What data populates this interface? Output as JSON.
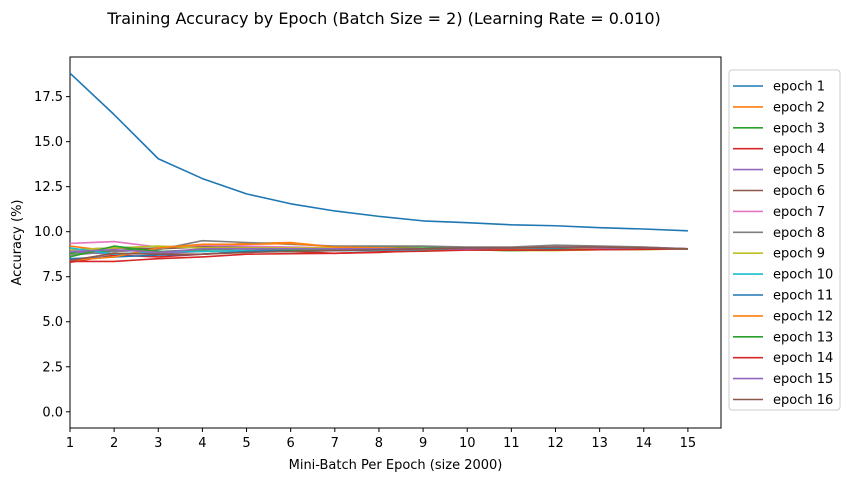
{
  "chart_data": {
    "type": "line",
    "title": "Training Accuracy by Epoch (Batch Size = 2) (Learning Rate = 0.010)",
    "xlabel": "Mini-Batch Per Epoch (size 2000)",
    "ylabel": "Accuracy (%)",
    "xlim": [
      1,
      15.75
    ],
    "ylim": [
      -0.9,
      19.7
    ],
    "x": [
      1,
      2,
      3,
      4,
      5,
      6,
      7,
      8,
      9,
      10,
      11,
      12,
      13,
      14,
      15
    ],
    "xticks": [
      "1",
      "2",
      "3",
      "4",
      "5",
      "6",
      "7",
      "8",
      "9",
      "10",
      "11",
      "12",
      "13",
      "14",
      "15"
    ],
    "yticks": [
      "0.0",
      "2.5",
      "5.0",
      "7.5",
      "10.0",
      "12.5",
      "15.0",
      "17.5"
    ],
    "yticks_values": [
      0,
      2.5,
      5,
      7.5,
      10,
      12.5,
      15,
      17.5
    ],
    "grid": false,
    "legend_position": "outside-right",
    "series": [
      {
        "name": "epoch 1",
        "color": "#1f77b4",
        "values": [
          18.8,
          16.5,
          14.05,
          12.95,
          12.1,
          11.55,
          11.15,
          10.85,
          10.6,
          10.5,
          10.38,
          10.33,
          10.22,
          10.15,
          10.05
        ]
      },
      {
        "name": "epoch 2",
        "color": "#ff7f0e",
        "values": [
          9.2,
          8.9,
          9.05,
          9.2,
          9.35,
          9.4,
          9.15,
          9.1,
          9.05,
          9.0,
          9.0,
          8.98,
          9.0,
          9.05,
          9.05
        ]
      },
      {
        "name": "epoch 3",
        "color": "#2ca02c",
        "values": [
          8.8,
          8.95,
          9.1,
          9.15,
          9.15,
          9.1,
          9.1,
          9.15,
          9.15,
          9.12,
          9.05,
          9.1,
          9.05,
          9.05,
          9.05
        ]
      },
      {
        "name": "epoch 4",
        "color": "#d62728",
        "values": [
          8.3,
          8.7,
          8.6,
          8.75,
          8.9,
          8.9,
          8.8,
          8.85,
          8.95,
          9.0,
          9.05,
          9.05,
          9.05,
          9.05,
          9.05
        ]
      },
      {
        "name": "epoch 5",
        "color": "#9467bd",
        "values": [
          8.9,
          8.75,
          8.8,
          8.9,
          8.95,
          9.0,
          8.95,
          9.0,
          9.0,
          9.05,
          9.05,
          9.05,
          9.05,
          9.1,
          9.05
        ]
      },
      {
        "name": "epoch 6",
        "color": "#8c564b",
        "values": [
          9.0,
          9.1,
          9.05,
          9.15,
          9.1,
          9.05,
          9.1,
          9.05,
          9.05,
          9.1,
          9.1,
          9.1,
          9.1,
          9.1,
          9.05
        ]
      },
      {
        "name": "epoch 7",
        "color": "#e377c2",
        "values": [
          9.35,
          9.45,
          9.15,
          9.25,
          9.2,
          9.15,
          9.1,
          9.1,
          9.05,
          9.05,
          9.1,
          9.15,
          9.15,
          9.15,
          9.05
        ]
      },
      {
        "name": "epoch 8",
        "color": "#7f7f7f",
        "values": [
          8.7,
          8.9,
          9.0,
          9.5,
          9.4,
          9.3,
          9.2,
          9.2,
          9.2,
          9.15,
          9.15,
          9.25,
          9.2,
          9.15,
          9.05
        ]
      },
      {
        "name": "epoch 9",
        "color": "#bcbd22",
        "values": [
          9.0,
          9.1,
          9.2,
          9.1,
          9.1,
          9.1,
          9.1,
          9.05,
          9.0,
          9.0,
          8.95,
          8.95,
          9.0,
          9.0,
          9.05
        ]
      },
      {
        "name": "epoch 10",
        "color": "#17becf",
        "values": [
          9.1,
          8.75,
          8.9,
          8.9,
          8.95,
          8.9,
          8.95,
          8.95,
          9.0,
          9.05,
          9.05,
          9.05,
          9.05,
          9.05,
          9.05
        ]
      },
      {
        "name": "epoch 11",
        "color": "#1f77b4",
        "values": [
          8.5,
          8.6,
          8.7,
          8.75,
          8.9,
          8.95,
          8.95,
          9.0,
          9.05,
          9.1,
          9.1,
          9.1,
          9.1,
          9.1,
          9.05
        ]
      },
      {
        "name": "epoch 12",
        "color": "#ff7f0e",
        "values": [
          8.4,
          8.6,
          9.1,
          9.3,
          9.3,
          9.35,
          9.15,
          9.1,
          9.05,
          9.0,
          9.0,
          9.0,
          9.05,
          9.05,
          9.05
        ]
      },
      {
        "name": "epoch 13",
        "color": "#2ca02c",
        "values": [
          8.6,
          9.2,
          8.9,
          9.0,
          9.05,
          9.0,
          9.0,
          9.05,
          9.05,
          9.0,
          8.95,
          9.0,
          9.0,
          9.05,
          9.05
        ]
      },
      {
        "name": "epoch 14",
        "color": "#d62728",
        "values": [
          8.35,
          8.35,
          8.5,
          8.6,
          8.75,
          8.78,
          8.8,
          8.88,
          8.92,
          8.98,
          8.98,
          8.98,
          9.0,
          9.02,
          9.05
        ]
      },
      {
        "name": "epoch 15",
        "color": "#9467bd",
        "values": [
          8.9,
          9.0,
          8.85,
          9.05,
          9.05,
          9.05,
          9.05,
          9.05,
          9.05,
          9.05,
          9.1,
          9.15,
          9.1,
          9.1,
          9.05
        ]
      },
      {
        "name": "epoch 16",
        "color": "#8c564b",
        "values": [
          8.4,
          8.8,
          8.75,
          8.75,
          8.85,
          8.9,
          8.95,
          9.0,
          9.05,
          9.1,
          9.1,
          9.15,
          9.15,
          9.1,
          9.05
        ]
      }
    ]
  }
}
